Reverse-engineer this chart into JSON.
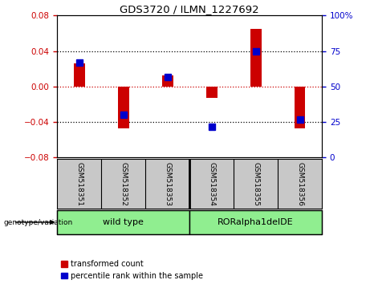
{
  "title": "GDS3720 / ILMN_1227692",
  "samples": [
    "GSM518351",
    "GSM518352",
    "GSM518353",
    "GSM518354",
    "GSM518355",
    "GSM518356"
  ],
  "red_values": [
    0.026,
    -0.047,
    0.013,
    -0.013,
    0.065,
    -0.047
  ],
  "blue_values_pct": [
    67,
    30,
    57,
    22,
    75,
    27
  ],
  "ylim_left": [
    -0.08,
    0.08
  ],
  "ylim_right": [
    0,
    100
  ],
  "yticks_left": [
    -0.08,
    -0.04,
    0,
    0.04,
    0.08
  ],
  "yticks_right": [
    0,
    25,
    50,
    75,
    100
  ],
  "group_bg_color": "#90EE90",
  "tick_label_bg": "#C8C8C8",
  "red_color": "#CC0000",
  "blue_color": "#0000CC",
  "red_bar_width": 0.25,
  "blue_marker_size": 6,
  "zero_line_color": "#CC0000",
  "left_tick_color": "#CC0000",
  "right_tick_color": "#0000CC"
}
